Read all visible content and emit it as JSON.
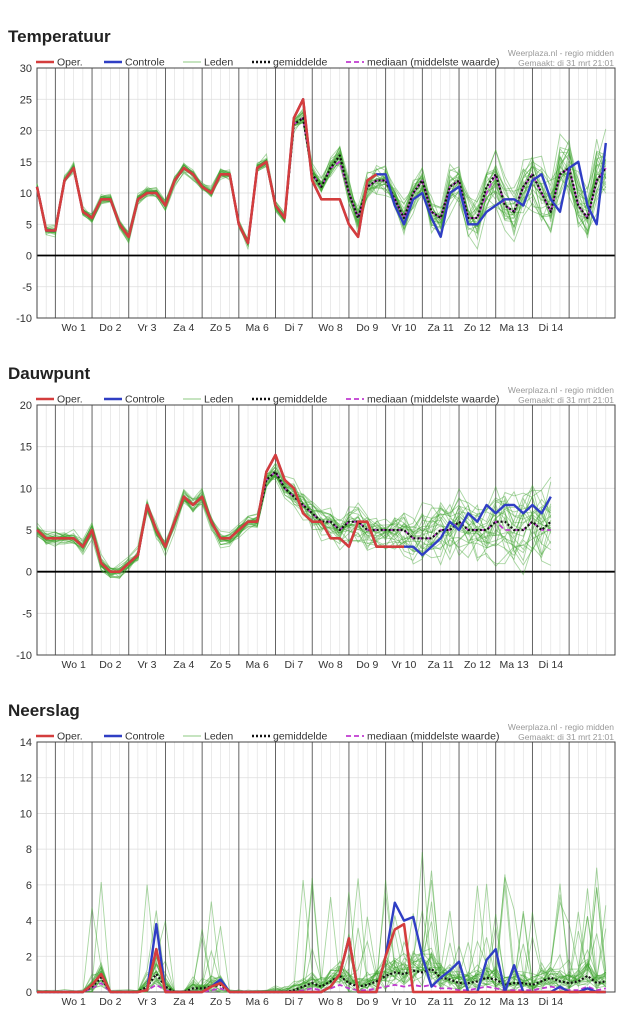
{
  "legend": {
    "oper": "Oper.",
    "controle": "Controle",
    "leden": "Leden",
    "gemiddelde": "gemiddelde",
    "mediaan": "mediaan (middelste waarde)"
  },
  "credit": {
    "source": "Weerplaza.nl - regio midden",
    "made": "Gemaakt: di 31 mrt 21:01"
  },
  "colors": {
    "oper": "#d43d3d",
    "controle": "#2f3ec4",
    "leden": "#3fa52f",
    "gemiddelde": "#111111",
    "mediaan": "#c03ad0",
    "grid": "#dddddd",
    "daySep": "#555555"
  },
  "days": [
    "Wo 1",
    "Do 2",
    "Vr 3",
    "Za 4",
    "Zo 5",
    "Ma 6",
    "Di 7",
    "Wo 8",
    "Do 9",
    "Vr 10",
    "Za 11",
    "Zo 12",
    "Ma 13",
    "Di 14"
  ],
  "chart_data": [
    {
      "type": "line",
      "title": "Temperatuur",
      "ylim": [
        -10,
        30
      ],
      "yticks": [
        -10,
        -5,
        0,
        5,
        10,
        15,
        20,
        25,
        30
      ],
      "x_unit": "periods (4 per day, starting Tue 31 Mar evening)",
      "series": [
        {
          "name": "Oper.",
          "values": [
            11,
            4,
            4,
            12,
            14,
            7,
            6,
            9,
            9,
            5,
            3,
            9,
            10,
            10,
            8,
            12,
            14,
            13,
            11,
            10,
            13,
            13,
            5,
            2,
            14,
            15,
            8,
            6,
            22,
            25,
            12,
            9,
            9,
            9,
            5,
            3,
            12,
            13
          ]
        },
        {
          "name": "Controle",
          "values": [
            11,
            4,
            4,
            12,
            14,
            7,
            6,
            9,
            9,
            5,
            3,
            9,
            10,
            10,
            8,
            12,
            14,
            13,
            11,
            10,
            13,
            13,
            5,
            2,
            14,
            15,
            8,
            6,
            22,
            25,
            12,
            9,
            9,
            9,
            5,
            3,
            12,
            13,
            13,
            8,
            5,
            9,
            10,
            6,
            3,
            10,
            11,
            5,
            5,
            7,
            8,
            9,
            9,
            8,
            12,
            13,
            9,
            7,
            14,
            15,
            8,
            5,
            18
          ]
        },
        {
          "name": "gemiddelde",
          "values": [
            11,
            4,
            4,
            12,
            14,
            7,
            6,
            9,
            9,
            5,
            3,
            9,
            10,
            10,
            8,
            12,
            14,
            13,
            11,
            10,
            13,
            13,
            5,
            2,
            14,
            15,
            8,
            6,
            21,
            22,
            13,
            11,
            14,
            16,
            10,
            6,
            11,
            12,
            12,
            9,
            6,
            10,
            12,
            7,
            6,
            11,
            12,
            6,
            6,
            11,
            13,
            8,
            7,
            11,
            13,
            10,
            7,
            13,
            14,
            8,
            6,
            12,
            14
          ]
        },
        {
          "name": "mediaan (middelste waarde)",
          "values": [
            11,
            4,
            4,
            12,
            14,
            7,
            6,
            9,
            9,
            5,
            3,
            9,
            10,
            10,
            8,
            12,
            14,
            13,
            11,
            10,
            13,
            13,
            5,
            2,
            14,
            15,
            8,
            6,
            21,
            22,
            13,
            11,
            14,
            15,
            10,
            6,
            11,
            12,
            12,
            9,
            6,
            10,
            12,
            7,
            6,
            11,
            12,
            6,
            6,
            10,
            13,
            8,
            7,
            11,
            13,
            10,
            7,
            13,
            14,
            8,
            6,
            12,
            14
          ]
        }
      ]
    },
    {
      "type": "line",
      "title": "Dauwpunt",
      "ylim": [
        -10,
        20
      ],
      "yticks": [
        -10,
        -5,
        0,
        5,
        10,
        15,
        20
      ],
      "series": [
        {
          "name": "Oper.",
          "values": [
            5,
            4,
            4,
            4,
            4,
            3,
            5,
            1,
            0,
            0,
            1,
            2,
            8,
            5,
            3,
            6,
            9,
            8,
            9,
            6,
            4,
            4,
            5,
            6,
            6,
            12,
            14,
            11,
            10,
            7,
            6,
            6,
            4,
            4,
            3,
            6,
            6,
            3,
            3,
            3,
            3
          ]
        },
        {
          "name": "Controle",
          "values": [
            5,
            4,
            4,
            4,
            4,
            3,
            5,
            1,
            0,
            0,
            1,
            2,
            8,
            5,
            3,
            6,
            9,
            8,
            9,
            6,
            4,
            4,
            5,
            6,
            6,
            12,
            14,
            11,
            10,
            7,
            6,
            6,
            4,
            4,
            3,
            6,
            6,
            3,
            3,
            3,
            3,
            3,
            2,
            3,
            4,
            6,
            5,
            7,
            6,
            8,
            7,
            8,
            8,
            7,
            8,
            7,
            9
          ]
        },
        {
          "name": "gemiddelde",
          "values": [
            5,
            4,
            4,
            4,
            4,
            3,
            5,
            1,
            0,
            0,
            1,
            2,
            8,
            5,
            3,
            6,
            9,
            8,
            9,
            6,
            4,
            4,
            5,
            6,
            6,
            11,
            12,
            10,
            9,
            8,
            7,
            6,
            6,
            5,
            6,
            6,
            5,
            5,
            5,
            5,
            5,
            4,
            4,
            4,
            5,
            5,
            6,
            5,
            5,
            5,
            6,
            6,
            5,
            5,
            6,
            5,
            6
          ]
        },
        {
          "name": "mediaan (middelste waarde)",
          "values": [
            5,
            4,
            4,
            4,
            4,
            3,
            5,
            1,
            0,
            0,
            1,
            2,
            8,
            5,
            3,
            6,
            9,
            8,
            9,
            6,
            4,
            4,
            5,
            6,
            6,
            11,
            12,
            10,
            9,
            8,
            7,
            6,
            6,
            5,
            6,
            6,
            5,
            5,
            5,
            5,
            5,
            4,
            4,
            4,
            5,
            5,
            6,
            5,
            5,
            5,
            6,
            5,
            5,
            5,
            6,
            5,
            5
          ]
        }
      ]
    },
    {
      "type": "line",
      "title": "Neerslag",
      "ylim": [
        0,
        14
      ],
      "yticks": [
        0,
        2,
        4,
        6,
        8,
        10,
        12,
        14
      ],
      "series": [
        {
          "name": "Oper.",
          "values": [
            0,
            0,
            0,
            0,
            0,
            0,
            0.4,
            1,
            0,
            0,
            0,
            0,
            0.1,
            2.4,
            0,
            0,
            0,
            0,
            0,
            0.3,
            0.5,
            0,
            0,
            0,
            0,
            0,
            0,
            0,
            0,
            0,
            0,
            0,
            0.3,
            1,
            3,
            0,
            0,
            0,
            2,
            3.5,
            3.8,
            0,
            0,
            0,
            0,
            0,
            0,
            0,
            0,
            0,
            0,
            0,
            0,
            0,
            0,
            0,
            0,
            0,
            0,
            0,
            0,
            0,
            0
          ]
        },
        {
          "name": "Controle",
          "values": [
            0,
            0,
            0,
            0,
            0,
            0,
            0.4,
            1,
            0,
            0,
            0,
            0,
            0.1,
            3.8,
            0,
            0,
            0,
            0,
            0,
            0.3,
            0.7,
            0,
            0,
            0,
            0,
            0,
            0,
            0,
            0,
            0,
            0,
            0,
            0.3,
            1,
            3,
            0,
            0,
            0,
            2,
            5,
            4,
            4.2,
            2,
            0.3,
            0.8,
            1.2,
            1.7,
            0,
            0,
            1.8,
            2.4,
            0,
            1.5,
            0,
            0,
            0,
            0,
            0.3,
            0,
            0,
            0.2,
            0,
            0
          ]
        },
        {
          "name": "gemiddelde",
          "values": [
            0,
            0,
            0,
            0,
            0,
            0,
            0.3,
            0.8,
            0,
            0,
            0,
            0,
            0.3,
            1,
            0.3,
            0,
            0,
            0.2,
            0.2,
            0.3,
            0.4,
            0,
            0,
            0,
            0,
            0,
            0,
            0,
            0.1,
            0.3,
            0.5,
            0.3,
            0.6,
            0.9,
            0.5,
            0.3,
            0.4,
            0.6,
            0.9,
            1.1,
            1,
            1.2,
            1.1,
            1.3,
            0.8,
            0.7,
            0.5,
            0.5,
            0.6,
            0.8,
            0.7,
            0.4,
            0.5,
            0.5,
            0.4,
            0.6,
            0.8,
            0.6,
            0.5,
            0.6,
            0.9,
            0.5,
            0.6
          ]
        },
        {
          "name": "mediaan (middelste waarde)",
          "values": [
            0,
            0,
            0,
            0,
            0,
            0,
            0.2,
            0.5,
            0,
            0,
            0,
            0,
            0.1,
            0.4,
            0.1,
            0,
            0,
            0,
            0,
            0.1,
            0.2,
            0,
            0,
            0,
            0,
            0,
            0,
            0,
            0,
            0.1,
            0.2,
            0.1,
            0.2,
            0.4,
            0.2,
            0.1,
            0.1,
            0.2,
            0.3,
            0.4,
            0.3,
            0.4,
            0.3,
            0.4,
            0.2,
            0.2,
            0.1,
            0.1,
            0.2,
            0.3,
            0.2,
            0.1,
            0.1,
            0.1,
            0.1,
            0.2,
            0.3,
            0.2,
            0.1,
            0.1,
            0.3,
            0.1,
            0.2
          ]
        }
      ]
    }
  ]
}
